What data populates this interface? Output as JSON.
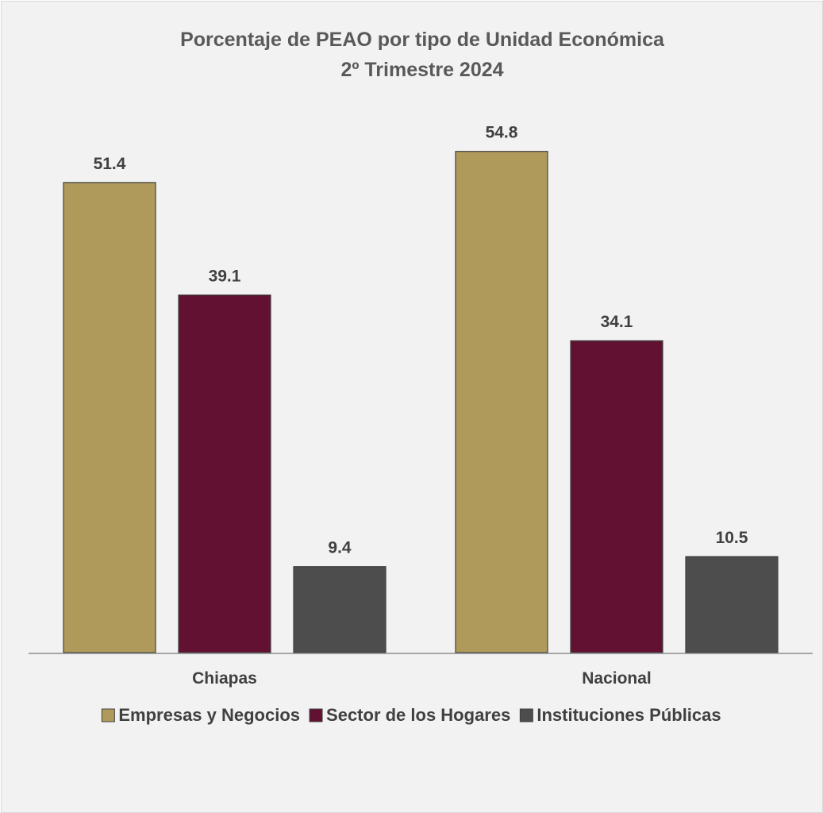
{
  "chart_data": {
    "type": "bar",
    "title": "Porcentaje de PEAO por tipo de Unidad Económica",
    "subtitle": "2º Trimestre 2024",
    "categories": [
      "Chiapas",
      "Nacional"
    ],
    "series": [
      {
        "name": "Empresas y Negocios",
        "values": [
          51.4,
          54.8
        ],
        "color": "#b09a5b"
      },
      {
        "name": "Sector de los Hogares",
        "values": [
          39.1,
          34.1
        ],
        "color": "#621132"
      },
      {
        "name": "Instituciones Públicas",
        "values": [
          9.4,
          10.5
        ],
        "color": "#4d4d4d"
      }
    ],
    "ylim": [
      0,
      60
    ],
    "grid": false,
    "legend_position": "bottom"
  }
}
